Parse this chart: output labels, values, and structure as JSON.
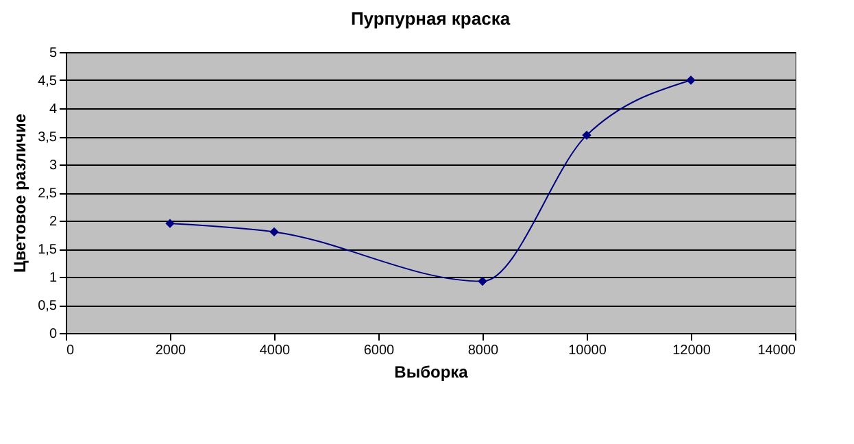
{
  "chart_data": {
    "type": "line",
    "title": "Пурпурная краска",
    "xlabel": "Выборка",
    "ylabel": "Цветовое различие",
    "x": [
      2000,
      4000,
      8000,
      10000,
      12000
    ],
    "series": [
      {
        "color": "#000080",
        "values": [
          1.95,
          1.8,
          0.92,
          3.52,
          4.5
        ]
      }
    ],
    "xlim": [
      0,
      14000
    ],
    "xticks": [
      0,
      2000,
      4000,
      6000,
      8000,
      10000,
      12000,
      14000
    ],
    "ylim": [
      0,
      5
    ],
    "yticks": [
      0,
      {
        "value": 0.5,
        "label": "0,5"
      },
      1,
      {
        "value": 1.5,
        "label": "1,5"
      },
      2,
      {
        "value": 2.5,
        "label": "2,5"
      },
      3,
      {
        "value": 3.5,
        "label": "3,5"
      },
      4,
      {
        "value": 4.5,
        "label": "4,5"
      },
      5
    ],
    "grid": "y",
    "marker": "diamond",
    "line_style": "solid"
  }
}
